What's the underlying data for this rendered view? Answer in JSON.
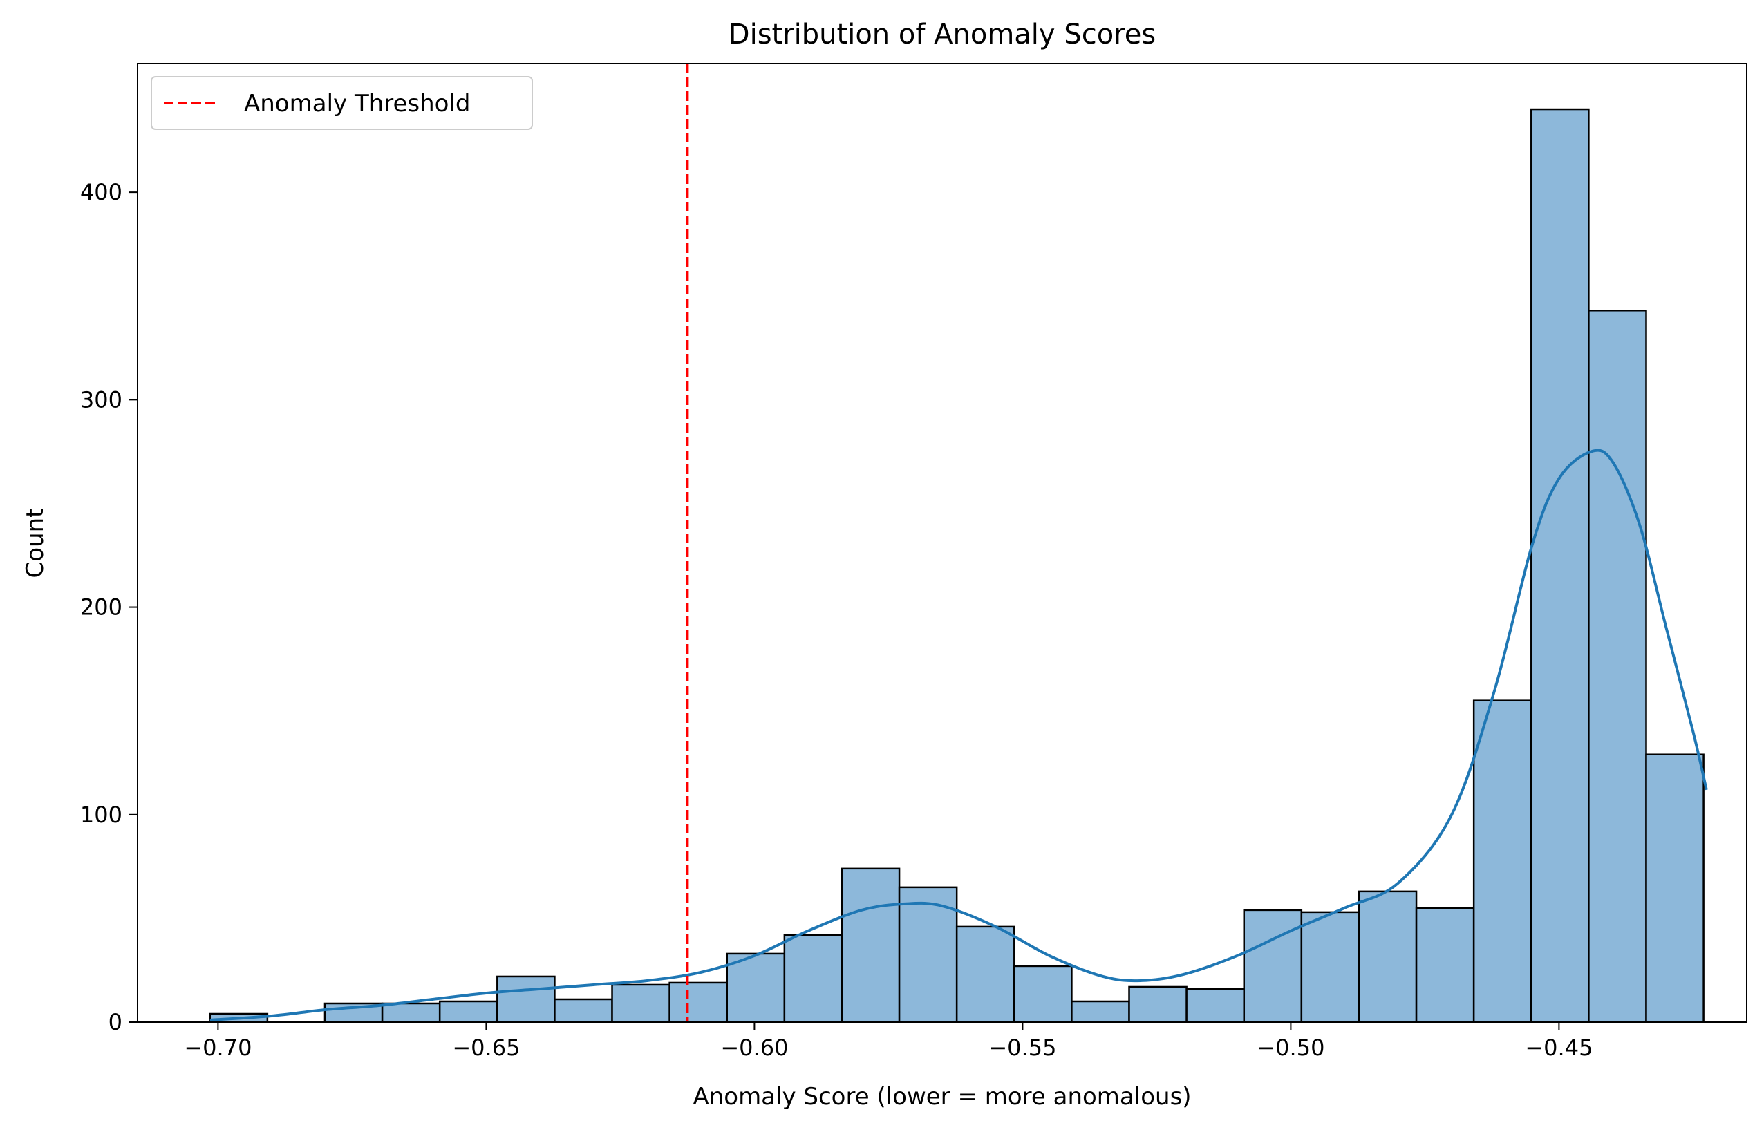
{
  "chart_data": {
    "type": "bar",
    "title": "Distribution of Anomaly Scores",
    "xlabel": "Anomaly Score (lower = more anomalous)",
    "ylabel": "Count",
    "xlim": [
      -0.715,
      -0.415
    ],
    "ylim": [
      0,
      462
    ],
    "xticks": [
      -0.7,
      -0.65,
      -0.6,
      -0.55,
      -0.5,
      -0.45
    ],
    "xtick_labels": [
      "−0.70",
      "−0.65",
      "−0.60",
      "−0.55",
      "−0.50",
      "−0.45"
    ],
    "yticks": [
      0,
      100,
      200,
      300,
      400
    ],
    "ytick_labels": [
      "0",
      "100",
      "200",
      "300",
      "400"
    ],
    "grid": false,
    "legend_position": "upper-left",
    "bins": {
      "start": -0.7015,
      "width": 0.01071,
      "counts": [
        4,
        0,
        9,
        9,
        10,
        22,
        11,
        18,
        19,
        33,
        42,
        74,
        65,
        46,
        27,
        10,
        17,
        16,
        54,
        53,
        63,
        55,
        155,
        440,
        343,
        129
      ]
    },
    "bar_color": "#8db8da",
    "bar_edge_color": "#000000",
    "kde": {
      "color": "#1f77b4",
      "x": [
        -0.7015,
        -0.69,
        -0.68,
        -0.67,
        -0.66,
        -0.65,
        -0.64,
        -0.63,
        -0.62,
        -0.61,
        -0.6,
        -0.59,
        -0.58,
        -0.572,
        -0.565,
        -0.555,
        -0.545,
        -0.535,
        -0.528,
        -0.52,
        -0.51,
        -0.5,
        -0.49,
        -0.48,
        -0.47,
        -0.462,
        -0.455,
        -0.45,
        -0.444,
        -0.44,
        -0.435,
        -0.43,
        -0.425,
        -0.4225
      ],
      "y": [
        1,
        3,
        6,
        8,
        11,
        14,
        16,
        18,
        20,
        24,
        32,
        44,
        54,
        57,
        56,
        46,
        32,
        22,
        20,
        23,
        32,
        44,
        55,
        67,
        100,
        160,
        230,
        262,
        275,
        270,
        240,
        190,
        140,
        112
      ]
    },
    "threshold": {
      "x": -0.6125,
      "label": "Anomaly Threshold",
      "color": "#ff0000",
      "style": "dashed"
    }
  }
}
